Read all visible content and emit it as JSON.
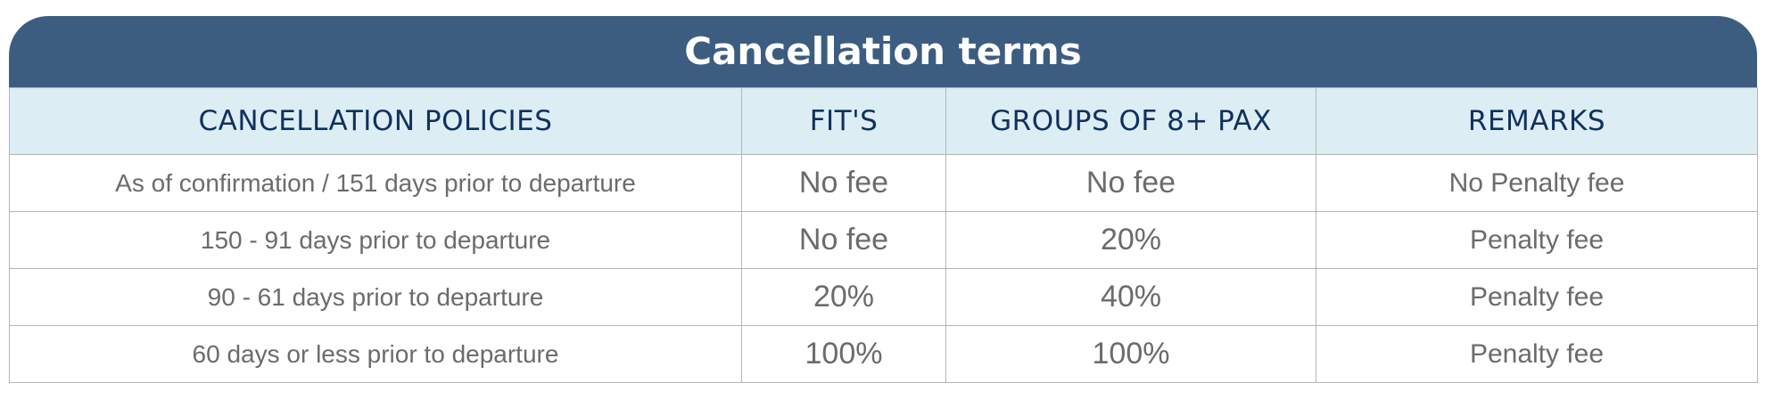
{
  "title": "Cancellation terms",
  "table": {
    "header": [
      "CANCELLATION POLICIES",
      "FIT'S",
      "GROUPS OF 8+ PAX",
      "REMARKS"
    ],
    "rows": [
      [
        "As of confirmation / 151 days prior to departure",
        "No fee",
        "No fee",
        "No Penalty fee"
      ],
      [
        "150 - 91 days prior to departure",
        "No fee",
        "20%",
        "Penalty fee"
      ],
      [
        "90 - 61 days prior to departure",
        "20%",
        "40%",
        "Penalty fee"
      ],
      [
        "60 days or less prior to departure",
        "100%",
        "100%",
        "Penalty fee"
      ]
    ]
  }
}
